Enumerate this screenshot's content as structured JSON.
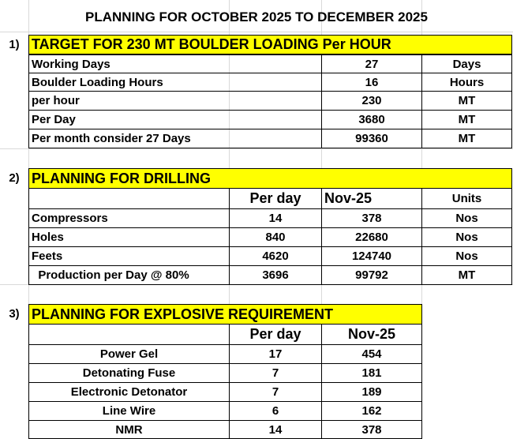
{
  "title": "PLANNING FOR OCTOBER 2025 TO  DECEMBER 2025",
  "colors": {
    "header_fill": "#ffff00",
    "gridline": "#d9d9d9",
    "border": "#000000"
  },
  "section1": {
    "number": "1)",
    "header": "TARGET FOR 230 MT  BOULDER LOADING Per HOUR",
    "rows": [
      {
        "label": "Working Days",
        "value": "27",
        "unit": "Days"
      },
      {
        "label": "Boulder Loading Hours",
        "value": "16",
        "unit": "Hours"
      },
      {
        "label": "per hour",
        "value": "230",
        "unit": "MT"
      },
      {
        "label": "Per Day",
        "value": "3680",
        "unit": "MT"
      },
      {
        "label": "Per month  consider 27 Days",
        "value": "99360",
        "unit": "MT"
      }
    ]
  },
  "section2": {
    "number": "2)",
    "header": "PLANNING FOR DRILLING",
    "col_headers": {
      "per_day": "Per day",
      "month": "Nov-25",
      "units": "Units"
    },
    "rows": [
      {
        "label": "Compressors",
        "per_day": "14",
        "month": "378",
        "unit": "Nos"
      },
      {
        "label": "Holes",
        "per_day": "840",
        "month": "22680",
        "unit": "Nos"
      },
      {
        "label": "Feets",
        "per_day": "4620",
        "month": "124740",
        "unit": "Nos"
      },
      {
        "label": "  Production per Day @ 80%",
        "per_day": "3696",
        "month": "99792",
        "unit": "MT"
      }
    ]
  },
  "section3": {
    "number": "3)",
    "header": "PLANNING FOR EXPLOSIVE REQUIREMENT",
    "col_headers": {
      "per_day": "Per day",
      "month": "Nov-25"
    },
    "rows": [
      {
        "label": "Power Gel",
        "per_day": "17",
        "month": "454"
      },
      {
        "label": "Detonating Fuse",
        "per_day": "7",
        "month": "181"
      },
      {
        "label": "Electronic Detonator",
        "per_day": "7",
        "month": "189"
      },
      {
        "label": "Line Wire",
        "per_day": "6",
        "month": "162"
      },
      {
        "label": "NMR",
        "per_day": "14",
        "month": "378"
      }
    ]
  }
}
